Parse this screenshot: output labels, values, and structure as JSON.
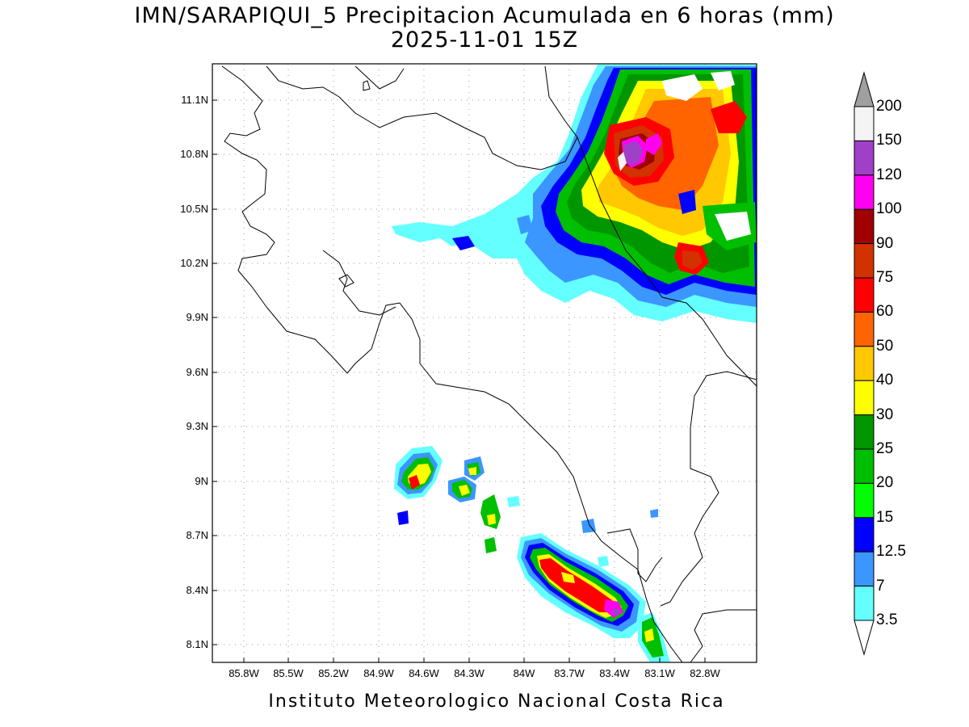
{
  "title": {
    "line1": "IMN/SARAPIQUI_5 Precipitacion Acumulada en 6 horas (mm)",
    "line2": "2025-11-01 15Z"
  },
  "footer": "Instituto Meteorologico Nacional Costa Rica",
  "axes": {
    "y_ticks": [
      "11.1N",
      "10.8N",
      "10.5N",
      "10.2N",
      "9.9N",
      "9.6N",
      "9.3N",
      "9N",
      "8.7N",
      "8.4N",
      "8.1N"
    ],
    "x_ticks": [
      "85.8W",
      "85.5W",
      "85.2W",
      "84.9W",
      "84.6W",
      "84.3W",
      "84W",
      "83.7W",
      "83.4W",
      "83.1W",
      "82.8W"
    ]
  },
  "colorbar": {
    "labels": [
      "200",
      "150",
      "120",
      "100",
      "90",
      "75",
      "60",
      "50",
      "40",
      "30",
      "25",
      "20",
      "15",
      "12.5",
      "7",
      "3.5"
    ],
    "colors": [
      "#a0a0a0",
      "#f4f4f4",
      "#a040c8",
      "#ff00f0",
      "#a00000",
      "#d23200",
      "#ff0000",
      "#ff6400",
      "#ffc800",
      "#ffff00",
      "#009600",
      "#00be00",
      "#00ff00",
      "#0000ff",
      "#3c96ff",
      "#64ffff",
      "#ffffff"
    ]
  },
  "map": {
    "background": "#ffffff"
  }
}
